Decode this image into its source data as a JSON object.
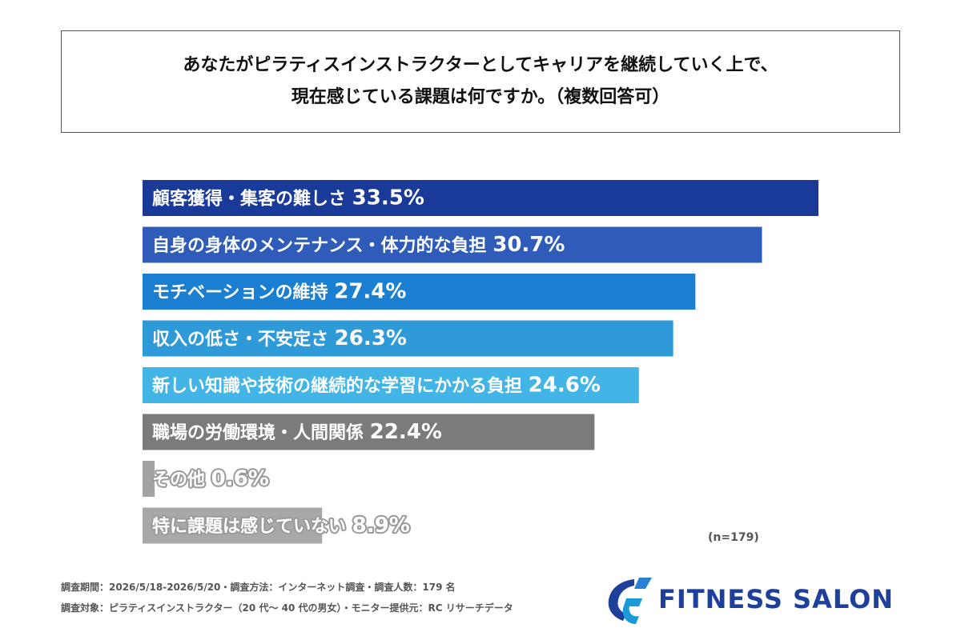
{
  "title": {
    "line1": "あなたがピラティスインストラクターとしてキャリアを継続していく上で、",
    "line2": "現在感じている課題は何ですか。（複数回答可）"
  },
  "chart_data": {
    "type": "bar",
    "orientation": "horizontal",
    "categories": [
      "顧客獲得・集客の難しさ",
      "自身の身体のメンテナンス・体力的な負担",
      "モチベーションの維持",
      "収入の低さ・不安定さ",
      "新しい知識や技術の継続的な学習にかかる負担",
      "職場の労働環境・人間関係",
      "その他",
      "特に課題は感じていない"
    ],
    "values": [
      33.5,
      30.7,
      27.4,
      26.3,
      24.6,
      22.4,
      0.6,
      8.9
    ],
    "value_labels": [
      "33.5%",
      "30.7%",
      "27.4%",
      "26.3%",
      "24.6%",
      "22.4%",
      "0.6%",
      "8.9%"
    ],
    "colors": [
      "#1a3a9a",
      "#2e5cb8",
      "#1a7fd0",
      "#2e9ad8",
      "#42b4e6",
      "#7b7b7b",
      "#a3a3a3",
      "#a8a8a8"
    ],
    "outlined_label_colors": [
      "#ffffff",
      "#ffffff",
      "#ffffff",
      "#ffffff",
      "#42b4e6",
      "#ffffff",
      "#9a9a9a",
      "#9a9a9a"
    ],
    "xlim": [
      0,
      37
    ]
  },
  "sample_size": "(n=179)",
  "footer": {
    "line1": "調査期間：2026/5/18-2026/5/20・調査方法：インターネット調査・調査人数：179 名",
    "line2": "調査対象：ピラティスインストラクター（20 代～ 40 代の男女）・モニター提供元：RC リサーチデータ"
  },
  "logo": {
    "text": "FITNESS SALON",
    "color": "#1e3f9a"
  }
}
